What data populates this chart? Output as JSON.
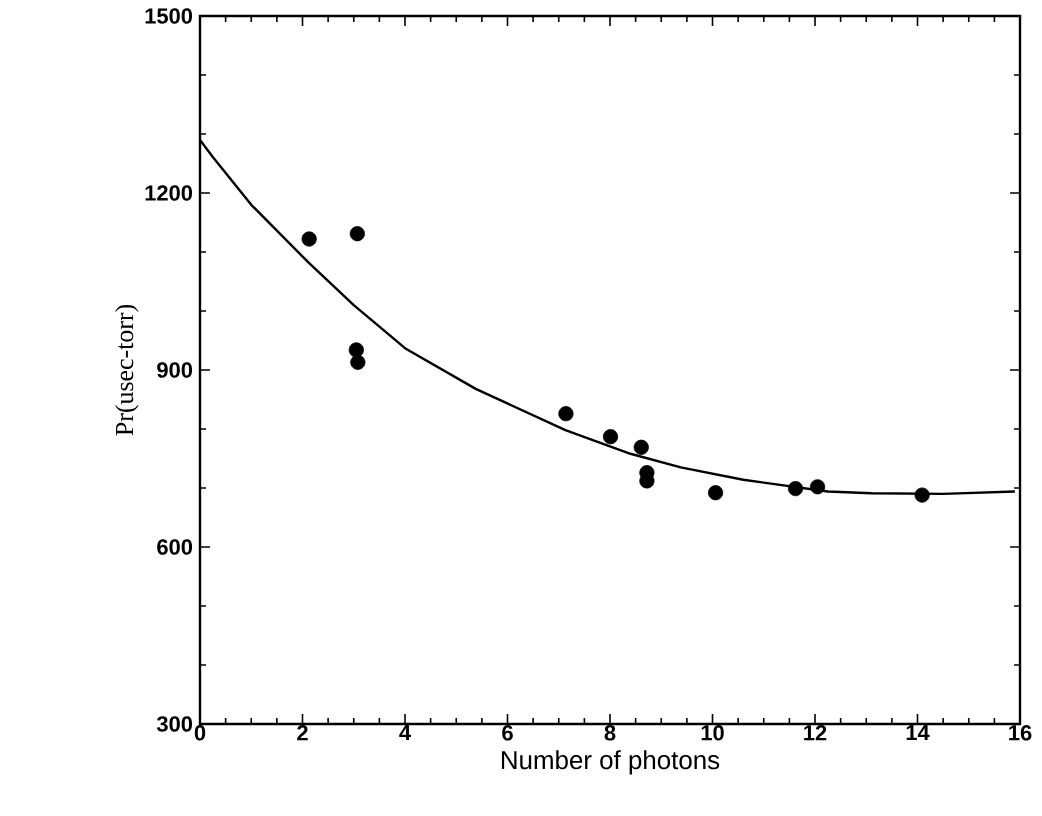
{
  "chart_data": {
    "type": "scatter",
    "xlabel": "Number of photons",
    "ylabel": "Pr(usec-torr)",
    "xlim": [
      0,
      16
    ],
    "ylim": [
      300,
      1500
    ],
    "xticks": [
      0,
      2,
      4,
      6,
      8,
      10,
      12,
      14,
      16
    ],
    "yticks": [
      300,
      600,
      900,
      1200,
      1500
    ],
    "grid": false,
    "series": [
      {
        "marker": "circle",
        "color": "#000000",
        "x": [
          2.13,
          3.07,
          3.05,
          3.08,
          7.14,
          8.01,
          8.61,
          8.72,
          8.72,
          10.06,
          11.62,
          12.05,
          14.09
        ],
        "values": [
          1122,
          1131,
          934,
          913,
          826,
          787,
          769,
          726,
          712,
          692,
          699,
          702,
          688
        ]
      },
      {
        "type": "line",
        "color": "#000000",
        "x": [
          0,
          0.25,
          1,
          2.13,
          3,
          4,
          5.38,
          7.13,
          8.4,
          9.38,
          10.6,
          12.25,
          13.1,
          14.5,
          15.9
        ],
        "values": [
          1290,
          1261,
          1180,
          1081,
          1010,
          937,
          868,
          798,
          758,
          735,
          714,
          694,
          691,
          690,
          694
        ]
      }
    ]
  }
}
